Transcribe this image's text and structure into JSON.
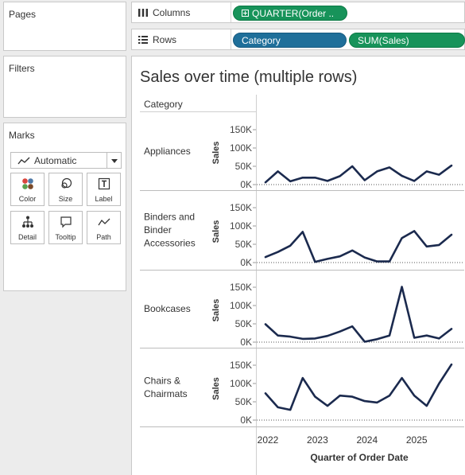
{
  "panels": {
    "pages": {
      "title": "Pages"
    },
    "filters": {
      "title": "Filters"
    },
    "marks": {
      "title": "Marks",
      "mark_type": "Automatic",
      "buttons": [
        "Color",
        "Size",
        "Label",
        "Detail",
        "Tooltip",
        "Path"
      ]
    }
  },
  "shelves": {
    "columns": {
      "label": "Columns",
      "pills": [
        "QUARTER(Order .."
      ]
    },
    "rows": {
      "label": "Rows",
      "pills": [
        "Category",
        "SUM(Sales)"
      ]
    }
  },
  "colors": {
    "line": "#1b2a4e",
    "green_pill": "#17935a",
    "blue_pill": "#1f6f9a",
    "mark_color_dots": [
      "#d9453d",
      "#4e79a7",
      "#59a14f",
      "#7b4b2a"
    ]
  },
  "view": {
    "title": "Sales over time (multiple rows)",
    "row_header": "Category",
    "x_axis_label": "Quarter of Order Date",
    "x_ticks": [
      "2022",
      "2023",
      "2024",
      "2025"
    ],
    "y_axis_label": "Sales",
    "y_ticks": [
      "0K",
      "50K",
      "100K",
      "150K"
    ]
  },
  "chart_data": {
    "type": "line",
    "title": "Sales over time (multiple rows)",
    "xlabel": "Quarter of Order Date",
    "ylabel": "Sales",
    "ylim": [
      0,
      170000
    ],
    "x": [
      "2022 Q1",
      "2022 Q2",
      "2022 Q3",
      "2022 Q4",
      "2023 Q1",
      "2023 Q2",
      "2023 Q3",
      "2023 Q4",
      "2024 Q1",
      "2024 Q2",
      "2024 Q3",
      "2024 Q4",
      "2025 Q1",
      "2025 Q2",
      "2025 Q3",
      "2025 Q4"
    ],
    "series": [
      {
        "name": "Appliances",
        "values": [
          6000,
          36000,
          9000,
          19000,
          19000,
          10000,
          23000,
          50000,
          12000,
          36000,
          47000,
          24000,
          10000,
          36000,
          27000,
          52000
        ]
      },
      {
        "name": "Binders and Binder Accessories",
        "values": [
          15000,
          29000,
          46000,
          84000,
          2000,
          10000,
          17000,
          33000,
          14000,
          3000,
          3000,
          67000,
          86000,
          44000,
          48000,
          76000
        ]
      },
      {
        "name": "Bookcases",
        "values": [
          49000,
          18000,
          15000,
          9000,
          10000,
          17000,
          29000,
          43000,
          1000,
          8000,
          18000,
          151000,
          12000,
          18000,
          10000,
          36000
        ]
      },
      {
        "name": "Chairs & Chairmats",
        "values": [
          73000,
          35000,
          28000,
          115000,
          64000,
          39000,
          67000,
          64000,
          52000,
          48000,
          67000,
          115000,
          67000,
          39000,
          100000,
          152000
        ]
      }
    ]
  }
}
